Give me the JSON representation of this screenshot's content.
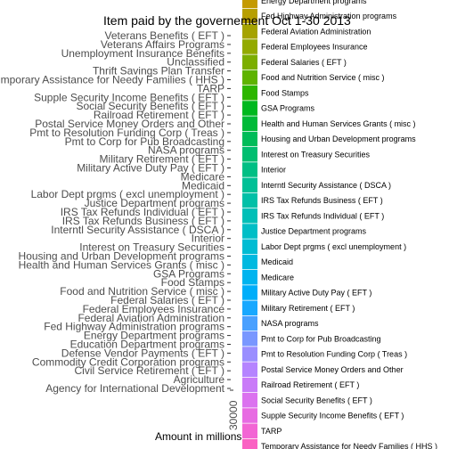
{
  "chart_data": {
    "type": "bar",
    "orientation": "horizontal",
    "title": "Item paid by the governement Oct 1-30 2013",
    "xlabel": "Amount in millions",
    "ylabel": "",
    "x_ticks": [
      "30000"
    ],
    "categories": [
      "Veterans Benefits ( EFT )",
      "Veterans Affairs Programs",
      "Unemployment Insurance Benefits",
      "Unclassified",
      "Thrift Savings Plan Transfer",
      "Temporary Assistance for Needy Families ( HHS )",
      "TARP",
      "Supple Security Income Benefits ( EFT )",
      "Social Security Benefits ( EFT )",
      "Railroad Retirement ( EFT )",
      "Postal Service Money Orders and Other",
      "Pmt to Resolution Funding Corp ( Treas )",
      "Pmt to Corp for Pub Broadcasting",
      "NASA programs",
      "Military Retirement ( EFT )",
      "Military Active Duty Pay ( EFT )",
      "Medicare",
      "Medicaid",
      "Labor Dept prgms ( excl unemployment )",
      "Justice Department programs",
      "IRS Tax Refunds Individual ( EFT )",
      "IRS Tax Refunds Business ( EFT )",
      "Interntl Security Assistance ( DSCA )",
      "Interior",
      "Interest on Treasury Securities",
      "Housing and Urban Development programs",
      "Health and Human Services Grants ( misc )",
      "GSA Programs",
      "Food Stamps",
      "Food and Nutrition Service ( misc )",
      "Federal Salaries ( EFT )",
      "Federal Employees Insurance",
      "Federal Aviation Administration",
      "Fed Highway Administration programs",
      "Energy Department programs",
      "Education Department programs",
      "Defense Vendor Payments ( EFT )",
      "Commodity Credit Corporation programs",
      "Civil Service Retirement ( EFT )",
      "Agriculture",
      "Agency for International Development"
    ],
    "legend": {
      "placement": "right",
      "items": [
        {
          "label": "Energy Department programs",
          "color": "#C49A00"
        },
        {
          "label": "Fed Highway Administration programs",
          "color": "#B79F00"
        },
        {
          "label": "Federal Aviation Administration",
          "color": "#A5A300"
        },
        {
          "label": "Federal Employees Insurance",
          "color": "#93AA00"
        },
        {
          "label": "Federal Salaries ( EFT )",
          "color": "#7CAE00"
        },
        {
          "label": "Food and Nutrition Service ( misc )",
          "color": "#5EB300"
        },
        {
          "label": "Food Stamps",
          "color": "#2DB600"
        },
        {
          "label": "GSA Programs",
          "color": "#00B81F"
        },
        {
          "label": "Health and Human Services Grants ( misc )",
          "color": "#00BA38"
        },
        {
          "label": "Housing and Urban Development programs",
          "color": "#00BC59"
        },
        {
          "label": "Interest on Treasury Securities",
          "color": "#00BE70"
        },
        {
          "label": "Interior",
          "color": "#00BF84"
        },
        {
          "label": "Interntl Security Assistance ( DSCA )",
          "color": "#00C096"
        },
        {
          "label": "IRS Tax Refunds Business ( EFT )",
          "color": "#00C0A7"
        },
        {
          "label": "IRS Tax Refunds Individual ( EFT )",
          "color": "#00BFB7"
        },
        {
          "label": "Justice Department programs",
          "color": "#00BEC6"
        },
        {
          "label": "Labor Dept prgms ( excl unemployment )",
          "color": "#00BCD3"
        },
        {
          "label": "Medicaid",
          "color": "#00B9E0"
        },
        {
          "label": "Medicare",
          "color": "#00B4EF"
        },
        {
          "label": "Military Active Duty Pay ( EFT )",
          "color": "#00AEFA"
        },
        {
          "label": "Military Retirement ( EFT )",
          "color": "#18A8FF"
        },
        {
          "label": "NASA programs",
          "color": "#4AA0FF"
        },
        {
          "label": "Pmt to Corp for Pub Broadcasting",
          "color": "#7997FF"
        },
        {
          "label": "Pmt to Resolution Funding Corp ( Treas )",
          "color": "#9A8EFF"
        },
        {
          "label": "Postal Service Money Orders and Other",
          "color": "#B584FF"
        },
        {
          "label": "Railroad Retirement ( EFT )",
          "color": "#C97BF8"
        },
        {
          "label": "Social Security Benefits ( EFT )",
          "color": "#DB72EF"
        },
        {
          "label": "Supple Security Income Benefits ( EFT )",
          "color": "#E76BE2"
        },
        {
          "label": "TARP",
          "color": "#F265D4"
        },
        {
          "label": "Temporary Assistance for Needy Families ( HHS )",
          "color": "#FA62C3"
        }
      ]
    }
  }
}
